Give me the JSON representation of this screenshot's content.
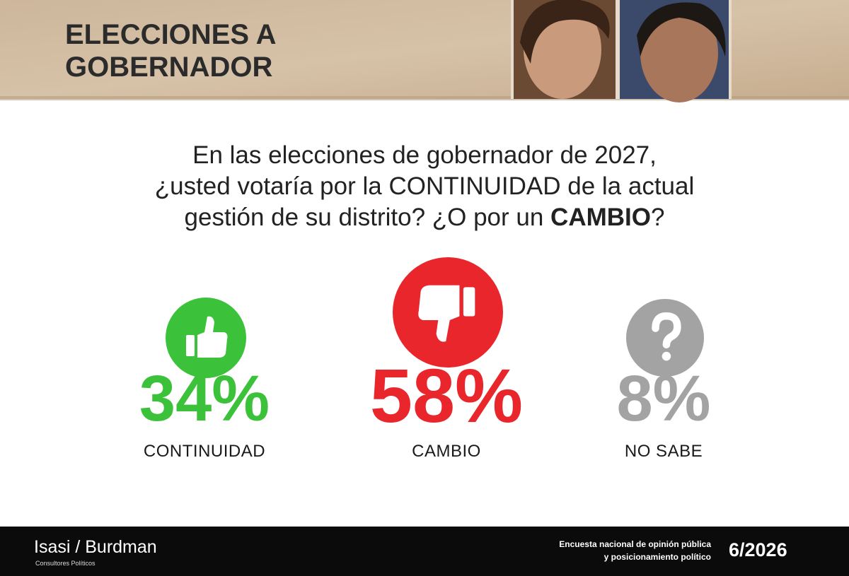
{
  "header": {
    "title_lines": [
      "ELECCIONES A",
      "GOBERNADOR"
    ]
  },
  "question": {
    "lines": [
      "En las elecciones de gobernador de 2027,",
      "¿usted votaría por la CONTINUIDAD de la actual",
      "gestión de su distrito? ¿O por un "
    ],
    "bold": "CAMBIO",
    "end": "?"
  },
  "results": [
    {
      "value": "34%",
      "label": "CONTINUIDAD",
      "color": "#3cc23a"
    },
    {
      "value": "58%",
      "label": "CAMBIO",
      "color": "#e8262b"
    },
    {
      "value": "8%",
      "label": "NO SABE",
      "color": "#a3a3a3"
    }
  ],
  "footer": {
    "brand": "Isasi / Burdman",
    "brand_sub": "Consultores Políticos",
    "survey_lines": [
      "Encuesta nacional de opinión pública",
      "y posicionamiento político"
    ],
    "date": "6/2026"
  }
}
